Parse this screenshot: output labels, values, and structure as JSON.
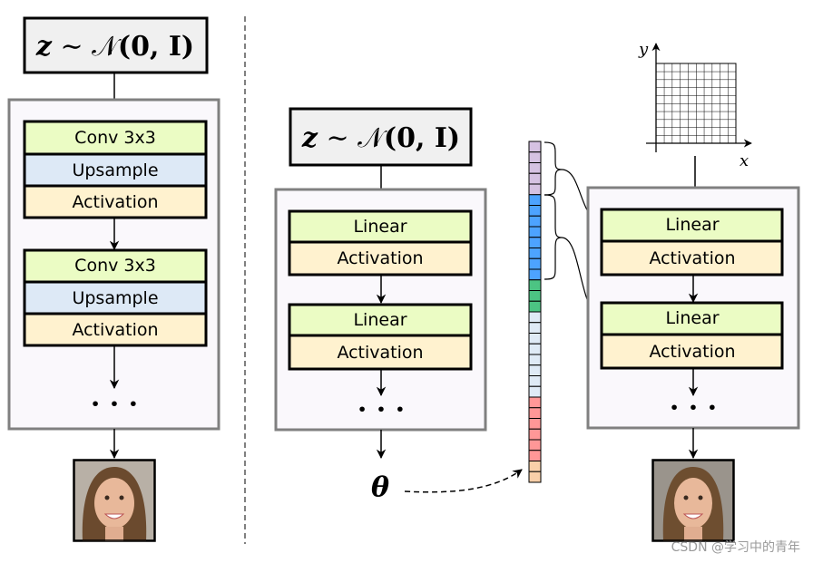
{
  "formula": {
    "z": "z",
    "sim": " ∼ ",
    "N": "𝒩",
    "args": "(0, I)"
  },
  "left": {
    "blocks": [
      {
        "conv": "Conv 3x3",
        "upsample": "Upsample",
        "activation": "Activation"
      },
      {
        "conv": "Conv 3x3",
        "upsample": "Upsample",
        "activation": "Activation"
      }
    ],
    "dots": "· · ·"
  },
  "middle": {
    "blocks": [
      {
        "linear": "Linear",
        "activation": "Activation"
      },
      {
        "linear": "Linear",
        "activation": "Activation"
      }
    ],
    "dots": "· · ·",
    "theta": "θ"
  },
  "right": {
    "blocks": [
      {
        "linear": "Linear",
        "activation": "Activation"
      },
      {
        "linear": "Linear",
        "activation": "Activation"
      }
    ],
    "dots": "· · ·",
    "axis_x": "x",
    "axis_y": "y"
  },
  "param_vector": {
    "segments": [
      {
        "color": "#d5c2e2",
        "count": 5
      },
      {
        "color": "#4da3ff",
        "count": 8
      },
      {
        "color": "#4cc483",
        "count": 3
      },
      {
        "color": "#dfeaf6",
        "count": 8
      },
      {
        "color": "#ff9797",
        "count": 6
      },
      {
        "color": "#f9cfa9",
        "count": 2
      }
    ]
  },
  "colors": {
    "conv_linear": "#ebfcc4",
    "upsample": "#dde9f6",
    "activation": "#fff2cf",
    "container": "#faf8fc",
    "container_border": "#808080",
    "formula_bg": "#f0f0f0"
  },
  "watermark": "CSDN @学习中的青年"
}
